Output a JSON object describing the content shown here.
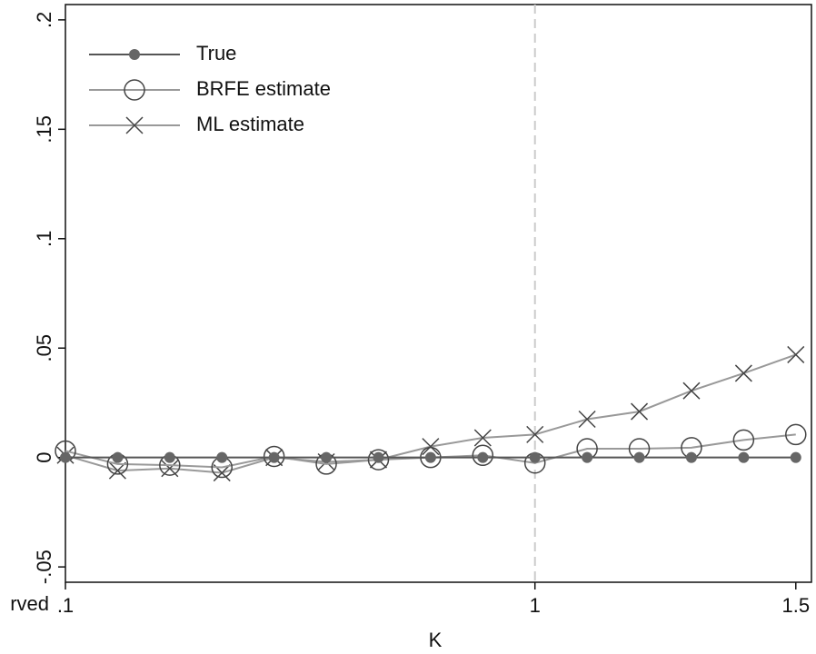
{
  "chart_data": {
    "type": "line",
    "x_label": "K",
    "left_margin_text": "rved",
    "x": [
      0.1,
      0.2,
      0.3,
      0.4,
      0.5,
      0.6,
      0.7,
      0.8,
      0.9,
      1.0,
      1.1,
      1.2,
      1.3,
      1.4,
      1.5
    ],
    "series": [
      {
        "name": "True",
        "color": "#555555",
        "marker": "dot",
        "values": [
          0,
          0,
          0,
          0,
          0,
          0,
          0,
          0,
          0,
          0,
          0,
          0,
          0,
          0,
          0
        ]
      },
      {
        "name": "BRFE estimate",
        "color": "#999999",
        "marker": "circle",
        "values": [
          0.003,
          -0.003,
          -0.0035,
          -0.0045,
          0.0005,
          -0.003,
          -0.001,
          0,
          0.001,
          -0.0025,
          0.004,
          0.004,
          0.0045,
          0.008,
          0.0105
        ]
      },
      {
        "name": "ML estimate",
        "color": "#999999",
        "marker": "cross",
        "values": [
          0.001,
          -0.006,
          -0.005,
          -0.007,
          0,
          -0.002,
          -0.001,
          0.005,
          0.009,
          0.0105,
          0.0175,
          0.021,
          0.0305,
          0.0385,
          0.047
        ]
      }
    ],
    "xlim": [
      0.1,
      1.53
    ],
    "ylim": [
      -0.057,
      0.207
    ],
    "xticks": [
      {
        "value": 0.1,
        "label": ".1"
      },
      1,
      1.5
    ],
    "yticks": [
      {
        "value": -0.05,
        "label": "-.05"
      },
      0,
      {
        "value": 0.05,
        "label": ".05"
      },
      {
        "value": 0.1,
        "label": ".1"
      },
      {
        "value": 0.15,
        "label": ".15"
      },
      {
        "value": 0.2,
        "label": ".2"
      }
    ],
    "reference_line_x": 1,
    "legend": "top-left"
  }
}
